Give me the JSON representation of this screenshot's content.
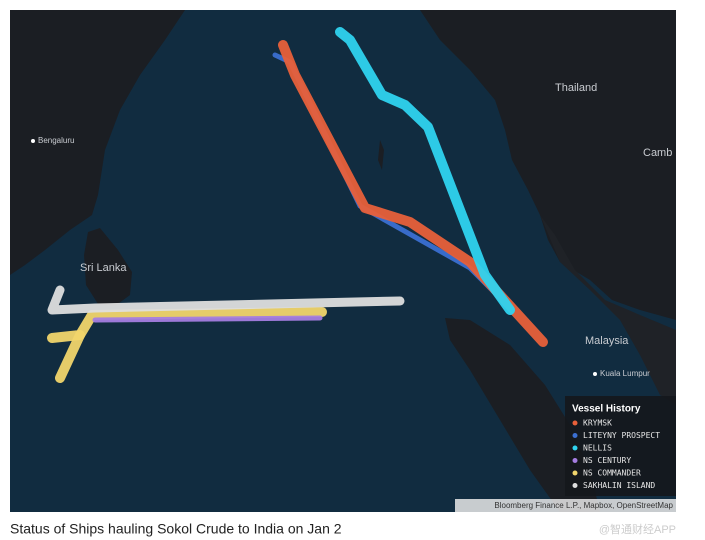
{
  "map": {
    "places": [
      "Bengaluru",
      "Sri Lanka",
      "Thailand",
      "Camb",
      "Malaysia",
      "Kuala Lumpur"
    ],
    "legend": {
      "title": "Vessel History",
      "entries": [
        {
          "name": "KRYMSK",
          "color": "#e8603a"
        },
        {
          "name": "LITEYNY PROSPECT",
          "color": "#3b6fd1"
        },
        {
          "name": "NELLIS",
          "color": "#2fd3ef"
        },
        {
          "name": "NS CENTURY",
          "color": "#a57de0"
        },
        {
          "name": "NS COMMANDER",
          "color": "#f1d56c"
        },
        {
          "name": "SAKHALIN ISLAND",
          "color": "#dedede"
        }
      ]
    },
    "attribution": "Bloomberg Finance L.P., Mapbox, OpenStreetMap"
  },
  "caption": "Status of Ships hauling Sokol Crude to India on Jan 2",
  "watermark": "@智通财经APP"
}
